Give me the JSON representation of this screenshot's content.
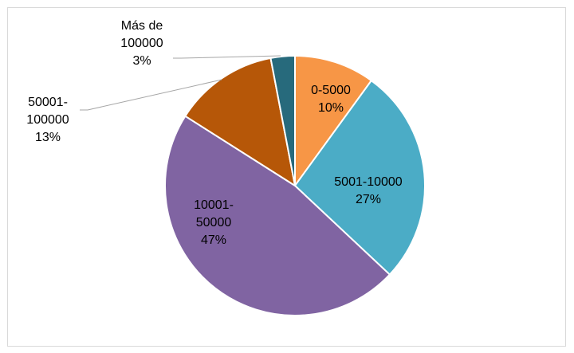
{
  "chart_data": {
    "type": "pie",
    "categories": [
      "0-5000",
      "5001-10000",
      "10001-50000",
      "50001-100000",
      "Más de 100000"
    ],
    "values": [
      10,
      27,
      47,
      13,
      3
    ],
    "value_labels": [
      "10%",
      "27%",
      "47%",
      "13%",
      "3%"
    ],
    "colors": [
      "#f79646",
      "#4bacc6",
      "#8064a2",
      "#b65708",
      "#276a7c"
    ]
  }
}
